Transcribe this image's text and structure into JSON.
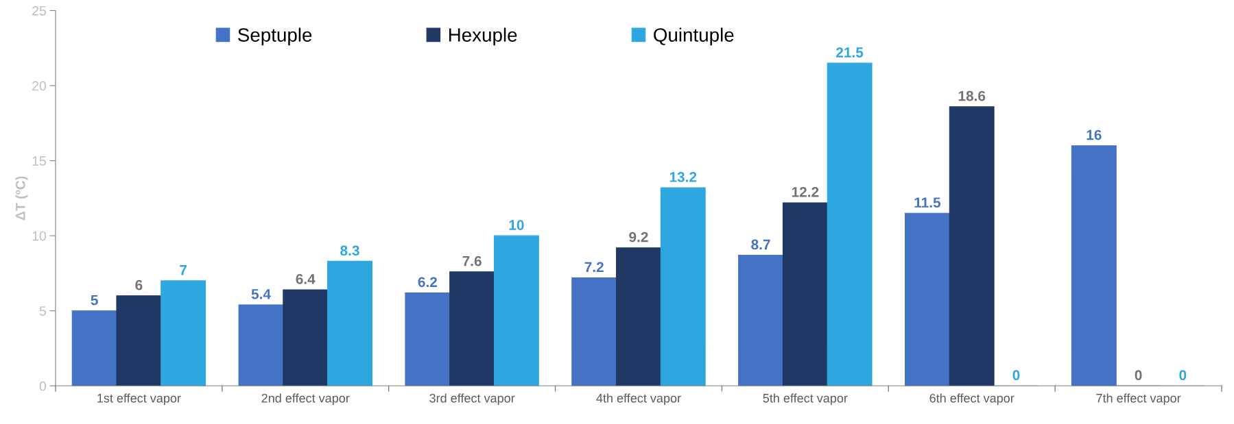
{
  "chart_data": {
    "type": "bar",
    "ylabel": "ΔT (ºC)",
    "categories": [
      "1st effect vapor",
      "2nd effect vapor",
      "3rd effect vapor",
      "4th effect vapor",
      "5th effect vapor",
      "6th effect vapor",
      "7th effect vapor"
    ],
    "series": [
      {
        "name": "Septuple",
        "color": "#4472c4",
        "values": [
          5,
          5.4,
          6.2,
          7.2,
          8.7,
          11.5,
          16
        ]
      },
      {
        "name": "Hexuple",
        "color": "#203864",
        "values": [
          6,
          6.4,
          7.6,
          9.2,
          12.2,
          18.6,
          0
        ]
      },
      {
        "name": "Quintuple",
        "color": "#2ea6e0",
        "values": [
          7,
          8.3,
          10,
          13.2,
          21.5,
          0,
          0
        ]
      }
    ],
    "ylim": [
      0,
      25
    ],
    "yticks": [
      0,
      5,
      10,
      15,
      20,
      25
    ],
    "grid": false,
    "legend": "top",
    "data_labels": true
  }
}
